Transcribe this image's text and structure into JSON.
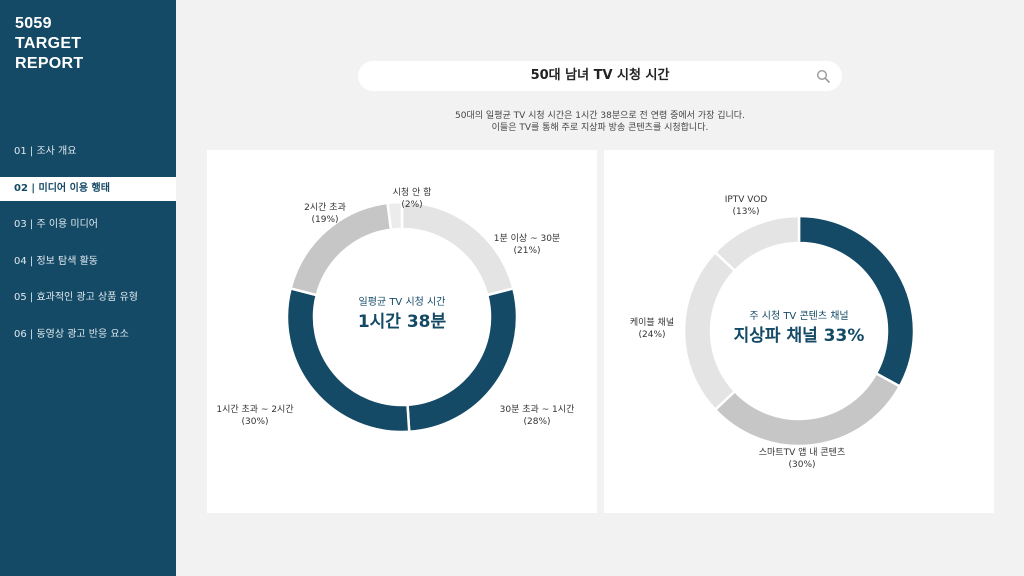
{
  "brand": {
    "line1": "5059",
    "line2": "TARGET",
    "line3": "REPORT"
  },
  "nav": [
    {
      "label": "01 | 조사 개요",
      "active": false
    },
    {
      "label": "02 | 미디어 이용 행태",
      "active": true
    },
    {
      "label": "03 | 주 이용 미디어",
      "active": false
    },
    {
      "label": "04 | 정보 탐색 활동",
      "active": false
    },
    {
      "label": "05 | 효과적인 광고 상품 유형",
      "active": false
    },
    {
      "label": "06 | 동영상 광고 반응 요소",
      "active": false
    }
  ],
  "search": {
    "title": "50대 남녀 TV 시청 시간",
    "icon": "search-icon"
  },
  "description": {
    "line1": "50대의 일평균 TV 시청 시간은 1시간 38분으로 전 연령 중에서 가장 깁니다.",
    "line2": "이들은 TV를 통해 주로 지상파 방송 콘텐츠를 시청합니다."
  },
  "colors": {
    "sidebar": "#144a66",
    "dark": "#144a66",
    "mid": "#c6c6c6",
    "light": "#e4e4e4",
    "lighter": "#ececec"
  },
  "chart_data": [
    {
      "type": "pie",
      "center_label": "일평균 TV 시청 시간",
      "center_value": "1시간 38분",
      "slices": [
        {
          "label": "1분 이상 ~ 30분",
          "value": 21,
          "pct_label": "(21%)",
          "color": "#e4e4e4"
        },
        {
          "label": "30분 초과 ~ 1시간",
          "value": 28,
          "pct_label": "(28%)",
          "color": "#144a66"
        },
        {
          "label": "1시간 초과 ~ 2시간",
          "value": 30,
          "pct_label": "(30%)",
          "color": "#144a66"
        },
        {
          "label": "2시간 초과",
          "value": 19,
          "pct_label": "(19%)",
          "color": "#c6c6c6"
        },
        {
          "label": "시청 안 함",
          "value": 2,
          "pct_label": "(2%)",
          "color": "#ececec"
        }
      ]
    },
    {
      "type": "pie",
      "center_label": "주 시청 TV 콘텐츠 채널",
      "center_value": "지상파 채널 33%",
      "slices": [
        {
          "label": "",
          "value": 33,
          "pct_label": "",
          "color": "#144a66"
        },
        {
          "label": "스마트TV 앱 내 콘텐츠",
          "value": 30,
          "pct_label": "(30%)",
          "color": "#c6c6c6"
        },
        {
          "label": "케이블 채널",
          "value": 24,
          "pct_label": "(24%)",
          "color": "#e4e4e4"
        },
        {
          "label": "IPTV VOD",
          "value": 13,
          "pct_label": "(13%)",
          "color": "#e4e4e4"
        }
      ]
    }
  ]
}
